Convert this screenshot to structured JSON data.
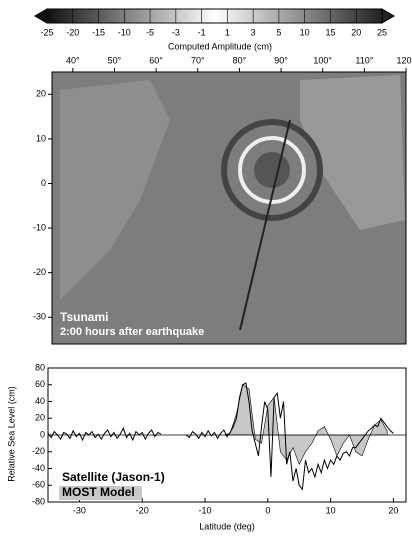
{
  "chart_data": [
    {
      "type": "colorbar",
      "xlabel": "Computed Amplitude (cm)",
      "ticks": [
        -25,
        -20,
        -15,
        -10,
        -5,
        -3,
        -1,
        1,
        3,
        5,
        10,
        15,
        20,
        25
      ]
    },
    {
      "type": "map",
      "xlim": [
        35,
        120
      ],
      "ylim": [
        -36,
        25
      ],
      "xticks": [
        {
          "value": 40,
          "label": "40°"
        },
        {
          "value": 50,
          "label": "50°"
        },
        {
          "value": 60,
          "label": "60°"
        },
        {
          "value": 70,
          "label": "70°"
        },
        {
          "value": 80,
          "label": "80°"
        },
        {
          "value": 90,
          "label": "90°"
        },
        {
          "value": 100,
          "label": "100°"
        },
        {
          "value": 110,
          "label": "110°"
        },
        {
          "value": 120,
          "label": "120"
        }
      ],
      "yticks": [
        20,
        10,
        0,
        -10,
        -20,
        -30
      ],
      "annotations": [
        "Tsunami",
        "2:00 hours after earthquake"
      ]
    },
    {
      "type": "line",
      "xlabel": "Latitude (deg)",
      "ylabel": "Relative Sea Level (cm)",
      "xlim": [
        -35,
        22
      ],
      "ylim": [
        -80,
        80
      ],
      "xticks": [
        -30,
        -20,
        -10,
        0,
        10,
        20
      ],
      "yticks": [
        -80,
        -60,
        -40,
        -20,
        0,
        20,
        40,
        60,
        80
      ],
      "series": [
        {
          "name": "MOST Model",
          "color": "#c8c8c8",
          "x": [
            -7,
            -6,
            -5,
            -4,
            -3,
            -2,
            -1,
            0,
            1,
            2,
            3,
            4,
            5,
            6,
            7,
            8,
            9,
            10,
            11,
            12,
            13,
            14,
            15,
            16,
            17,
            18,
            19
          ],
          "values": [
            0,
            2,
            25,
            60,
            55,
            -5,
            -10,
            35,
            45,
            -20,
            -30,
            -15,
            -35,
            -20,
            -10,
            5,
            10,
            -5,
            -25,
            -10,
            0,
            -20,
            -25,
            -5,
            12,
            18,
            5
          ]
        },
        {
          "name": "Satellite (Jason-1)",
          "color": "#000000",
          "x": [
            -35,
            -34.5,
            -34,
            -33.5,
            -33,
            -32.5,
            -32,
            -31.5,
            -31,
            -30.5,
            -30,
            -29.5,
            -29,
            -28.5,
            -28,
            -27.5,
            -27,
            -26.5,
            -26,
            -25.5,
            -25,
            -24.5,
            -24,
            -23.5,
            -23,
            -22.5,
            -22,
            -21.5,
            -21,
            -20.5,
            -20,
            -19.5,
            -19,
            -18.5,
            -18,
            -17.5,
            -17,
            -16.5,
            -16,
            -15.5,
            -15,
            -14.5,
            -14,
            -13.5,
            -13,
            -12.5,
            -12,
            -11.5,
            -11,
            -10.5,
            -10,
            -9.5,
            -9,
            -8.5,
            -8,
            -7.5,
            -7,
            -6.5,
            -6,
            -5.5,
            -5,
            -4.5,
            -4,
            -3.5,
            -3,
            -2.5,
            -2,
            -1.5,
            -1,
            -0.5,
            0,
            0.5,
            1,
            1.5,
            2,
            2.5,
            3,
            3.5,
            4,
            4.5,
            5,
            5.5,
            6,
            6.5,
            7,
            7.5,
            8,
            8.5,
            9,
            9.5,
            10,
            10.5,
            11,
            11.5,
            12,
            12.5,
            13,
            13.5,
            14,
            14.5,
            15,
            15.5,
            16,
            16.5,
            17,
            17.5,
            18,
            18.5,
            19,
            19.5,
            20
          ],
          "values": [
            2,
            -3,
            4,
            0,
            -5,
            3,
            1,
            -4,
            5,
            -2,
            2,
            -6,
            3,
            0,
            4,
            -3,
            1,
            -5,
            2,
            6,
            -2,
            3,
            -4,
            1,
            8,
            -3,
            2,
            -6,
            4,
            0,
            3,
            -5,
            2,
            6,
            -2,
            3,
            1,
            null,
            null,
            null,
            null,
            null,
            null,
            null,
            0,
            -3,
            4,
            1,
            -4,
            3,
            -2,
            5,
            -1,
            3,
            -4,
            2,
            6,
            -2,
            3,
            10,
            20,
            45,
            60,
            62,
            40,
            5,
            -10,
            -25,
            10,
            40,
            30,
            -50,
            45,
            50,
            20,
            40,
            -35,
            -20,
            -55,
            -40,
            -60,
            -65,
            -30,
            -45,
            -40,
            -50,
            -35,
            -45,
            -30,
            -40,
            -30,
            -35,
            -25,
            -30,
            -22,
            -20,
            -25,
            -15,
            -15,
            -10,
            -5,
            0,
            5,
            8,
            12,
            10,
            20,
            15,
            10,
            5,
            2
          ]
        }
      ]
    }
  ]
}
